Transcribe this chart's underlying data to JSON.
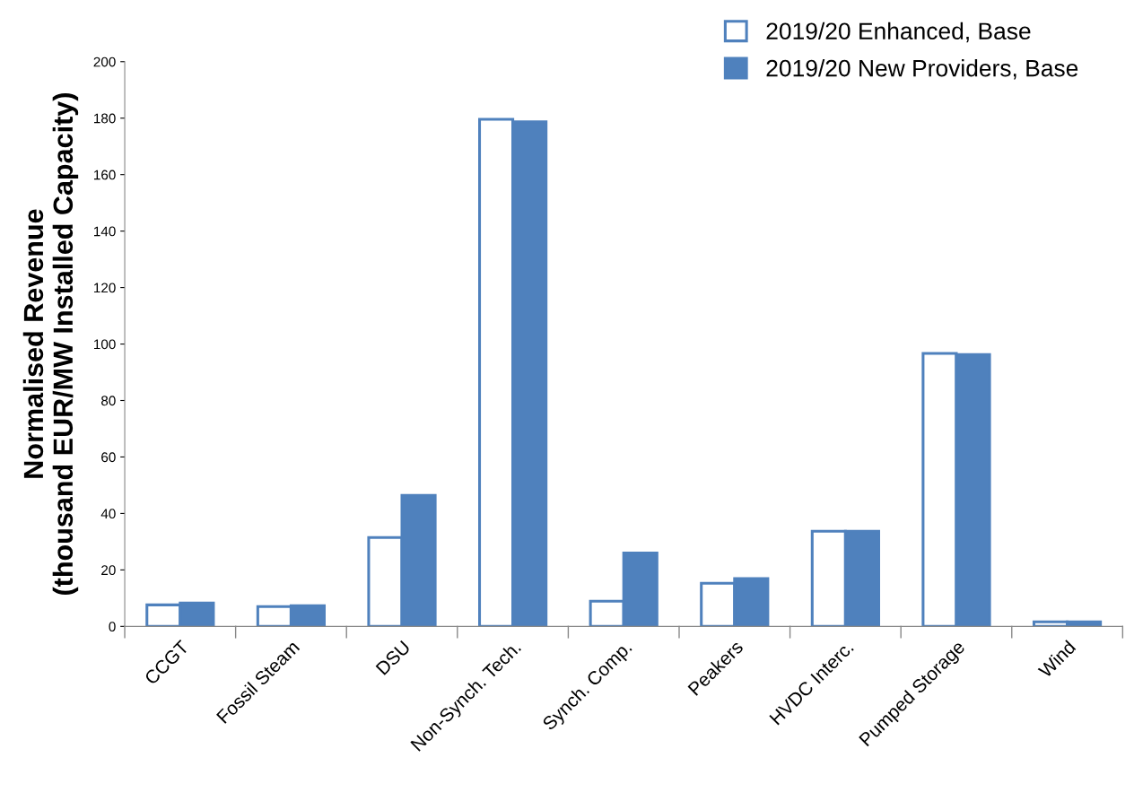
{
  "chart_data": {
    "type": "bar",
    "ylabel": "Normalised Revenue\n(thousand EUR/MW Installed Capacity)",
    "categories": [
      "CCGT",
      "Fossil Steam",
      "DSU",
      "Non-Synch. Tech.",
      "Synch. Comp.",
      "Peakers",
      "HVDC Interc.",
      "Pumped Storage",
      "Wind"
    ],
    "series": [
      {
        "name": "2019/20 Enhanced, Base",
        "color": "#4f81bd",
        "values": [
          7.6,
          7,
          31.5,
          179.6,
          8.9,
          15.3,
          33.7,
          96.7,
          1.6
        ]
      },
      {
        "name": "2019/20 New Providers, Base",
        "color": "#4f81bd",
        "values": [
          8.3,
          7.3,
          46.4,
          178.7,
          26,
          16.9,
          33.7,
          96.3,
          1.6
        ]
      }
    ],
    "ylim": [
      0,
      200
    ],
    "yticks": [
      0,
      20,
      40,
      60,
      80,
      100,
      120,
      140,
      160,
      180,
      200
    ],
    "grid": false,
    "legend": "top right"
  }
}
